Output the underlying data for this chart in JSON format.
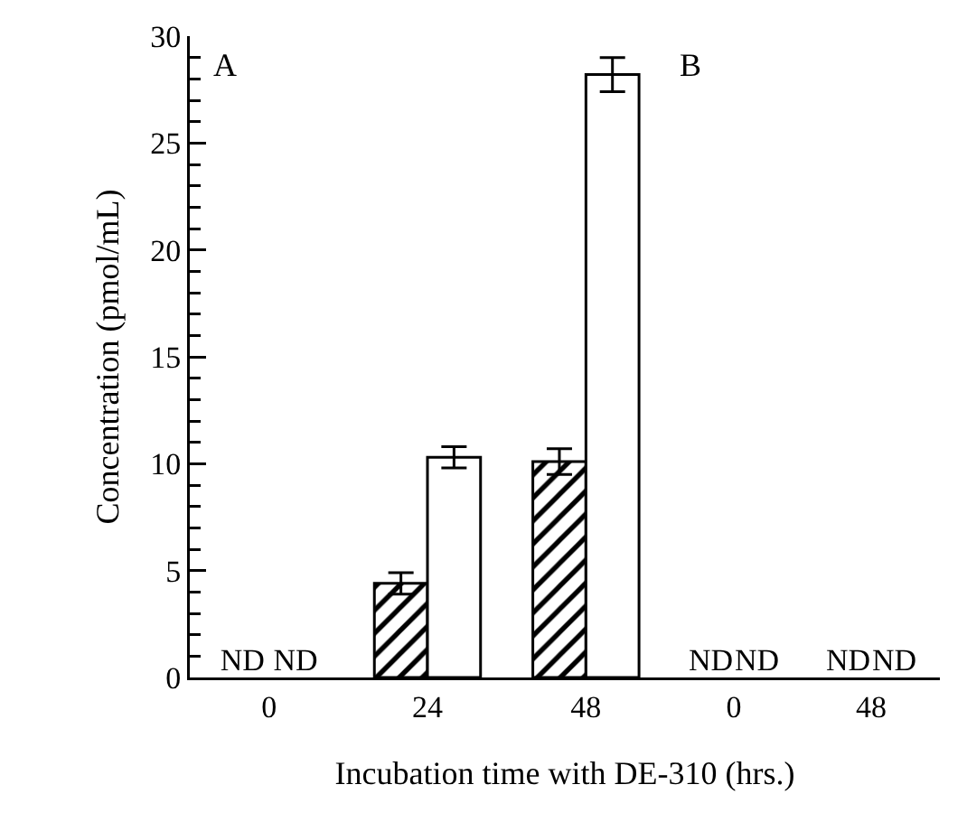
{
  "chart_data": [
    {
      "type": "bar",
      "title": "A",
      "ylabel": "Concentration (pmol/mL)",
      "xlabel": "Incubation time with DE-310 (hrs.)",
      "categories": [
        "0",
        "24",
        "48"
      ],
      "series": [
        {
          "color": "#000000",
          "values": [
            null,
            4.4,
            10.1
          ],
          "errors": [
            null,
            0.5,
            0.6
          ],
          "value_labels": [
            "ND",
            null,
            null
          ]
        },
        {
          "color": "#ffffff",
          "values": [
            null,
            10.3,
            28.2
          ],
          "errors": [
            null,
            0.5,
            0.8
          ],
          "value_labels": [
            "ND",
            null,
            null
          ]
        }
      ],
      "ylim": [
        0,
        30
      ],
      "yticks": [
        0,
        5,
        10,
        15,
        20,
        25,
        30
      ]
    },
    {
      "type": "bar",
      "title": "B",
      "categories": [
        "0",
        "48"
      ],
      "series": [
        {
          "color": "#000000",
          "values": [
            null,
            null
          ],
          "value_labels": [
            "ND",
            "ND"
          ]
        },
        {
          "color": "#ffffff",
          "values": [
            null,
            null
          ],
          "value_labels": [
            "ND",
            "ND"
          ]
        }
      ],
      "ylim": [
        0,
        30
      ],
      "tick_labels": "x"
    }
  ]
}
